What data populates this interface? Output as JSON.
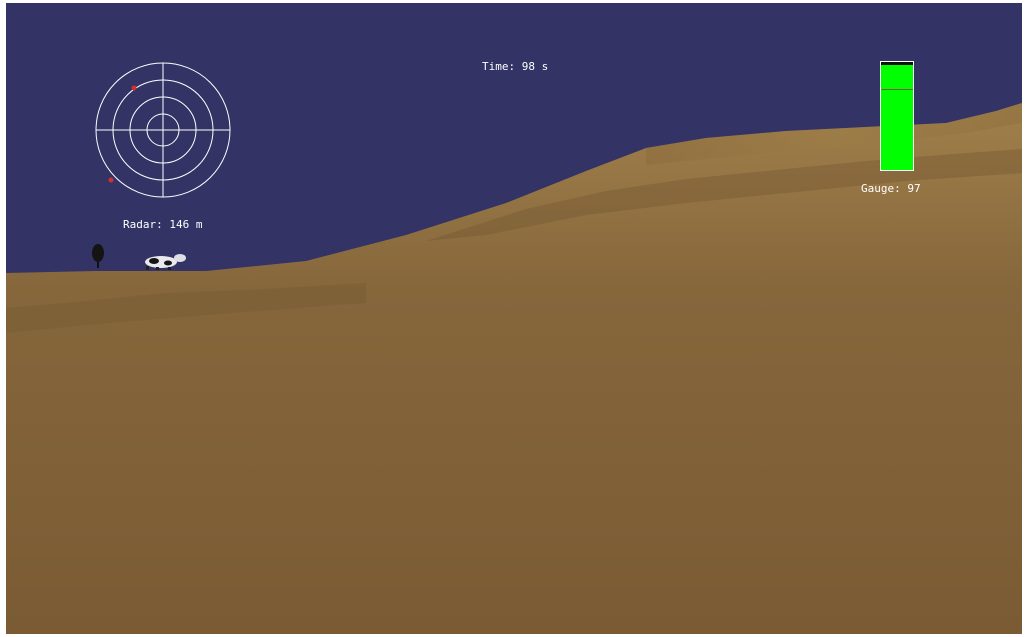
{
  "hud": {
    "time_label": "Time: 98 s",
    "radar_label": "Radar: 146 m",
    "gauge_label": "Gauge: 97"
  },
  "gauge": {
    "level_percent": 97,
    "marker_percent": 74,
    "fill_color": "#00ff00"
  },
  "radar": {
    "rings": 4,
    "blips": [
      {
        "name": "red-blip",
        "color": "#d03030"
      },
      {
        "name": "red-blip",
        "color": "#d03030"
      }
    ]
  },
  "scene": {
    "sky_color": "#333366",
    "terrain_color": "#7f5f35",
    "objects": [
      "tree",
      "cow"
    ]
  }
}
